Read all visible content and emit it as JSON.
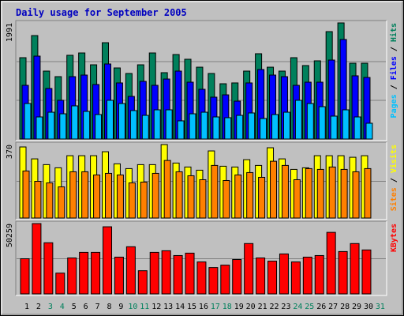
{
  "title": "Daily usage for September 2005",
  "legend_separator": " / ",
  "chart_data": [
    {
      "type": "bar",
      "ylim": [
        0,
        1991
      ],
      "yticks": [
        1991
      ],
      "series": [
        {
          "name": "Hits",
          "color": "#00805c",
          "values": [
            1395,
            1774,
            1165,
            1070,
            1436,
            1476,
            1273,
            1652,
            1219,
            1124,
            1273,
            1476,
            1138,
            1449,
            1368,
            1232,
            1124,
            948,
            962,
            1165,
            1463,
            1232,
            1165,
            1395,
            1260,
            1341,
            1842,
            1991,
            1300,
            1300,
            0
          ]
        },
        {
          "name": "Files",
          "color": "#0000ff",
          "values": [
            921,
            1422,
            867,
            664,
            1070,
            1097,
            935,
            1287,
            962,
            731,
            989,
            921,
            1029,
            1165,
            975,
            853,
            718,
            758,
            650,
            962,
            1192,
            1097,
            1070,
            921,
            975,
            975,
            1354,
            1707,
            1084,
            1056,
            0
          ]
        },
        {
          "name": "Pages",
          "color": "#00c0ff",
          "values": [
            609,
            379,
            460,
            433,
            569,
            474,
            420,
            664,
            609,
            488,
            406,
            501,
            501,
            312,
            433,
            460,
            379,
            366,
            406,
            447,
            352,
            420,
            460,
            664,
            609,
            555,
            393,
            501,
            379,
            271,
            0
          ]
        }
      ]
    },
    {
      "type": "bar",
      "ylim": [
        0,
        370
      ],
      "yticks": [
        370
      ],
      "series": [
        {
          "name": "Visits",
          "color": "#ffff00",
          "values": [
            358,
            298,
            269,
            253,
            314,
            314,
            314,
            334,
            273,
            249,
            269,
            269,
            370,
            277,
            257,
            241,
            338,
            261,
            257,
            294,
            265,
            354,
            298,
            245,
            253,
            314,
            314,
            314,
            306,
            314,
            0
          ]
        },
        {
          "name": "Sites",
          "color": "#ff8000",
          "values": [
            237,
            185,
            177,
            157,
            233,
            233,
            217,
            225,
            217,
            177,
            181,
            225,
            290,
            233,
            213,
            193,
            265,
            189,
            217,
            229,
            205,
            286,
            265,
            193,
            249,
            245,
            257,
            245,
            233,
            249,
            0
          ]
        }
      ]
    },
    {
      "type": "bar",
      "ylim": [
        0,
        50259
      ],
      "yticks": [
        50259
      ],
      "categories": [
        "1",
        "2",
        "3",
        "4",
        "5",
        "6",
        "7",
        "8",
        "9",
        "10",
        "11",
        "12",
        "13",
        "14",
        "15",
        "16",
        "17",
        "18",
        "19",
        "20",
        "21",
        "22",
        "23",
        "24",
        "25",
        "26",
        "27",
        "28",
        "29",
        "30",
        "31"
      ],
      "label_colors": [
        "#000000",
        "#000000",
        "#00805c",
        "#00805c",
        "#000000",
        "#000000",
        "#000000",
        "#000000",
        "#000000",
        "#00805c",
        "#00805c",
        "#000000",
        "#000000",
        "#000000",
        "#000000",
        "#000000",
        "#00805c",
        "#00805c",
        "#000000",
        "#000000",
        "#000000",
        "#000000",
        "#000000",
        "#00805c",
        "#00805c",
        "#000000",
        "#000000",
        "#000000",
        "#000000",
        "#000000",
        "#00805c"
      ],
      "series": [
        {
          "name": "KBytes",
          "color": "#ff0000",
          "values": [
            25130,
            50259,
            36550,
            14849,
            25700,
            29697,
            29697,
            47972,
            26271,
            33695,
            16562,
            29697,
            30840,
            27413,
            29127,
            22845,
            18847,
            20560,
            24558,
            35980,
            25700,
            23416,
            28556,
            22845,
            26271,
            27413,
            43975,
            30270,
            35980,
            31411,
            0
          ]
        }
      ]
    }
  ]
}
